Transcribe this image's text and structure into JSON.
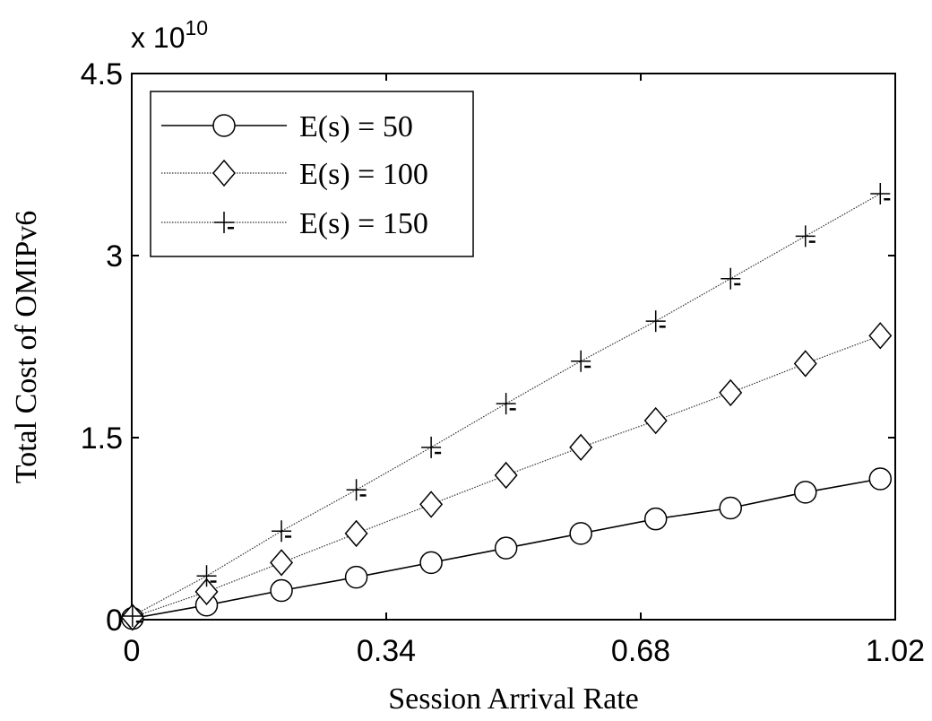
{
  "chart_data": {
    "type": "line",
    "xlabel": "Session Arrival Rate",
    "ylabel": "Total Cost of OMIPv6",
    "y_multiplier": {
      "base": "x 10",
      "exponent": "10"
    },
    "xlim": [
      0,
      1.02
    ],
    "ylim": [
      0,
      4.5
    ],
    "xticks": [
      0,
      0.34,
      0.68,
      1.02
    ],
    "xtick_labels": [
      "0",
      "0.34",
      "0.68",
      "1.02"
    ],
    "yticks": [
      0,
      1.5,
      3,
      4.5
    ],
    "ytick_labels": [
      "0",
      "1.5",
      "3",
      "4.5"
    ],
    "grid": false,
    "legend_position": "top-left",
    "x": [
      0.001,
      0.1,
      0.2,
      0.3,
      0.4,
      0.5,
      0.6,
      0.7,
      0.8,
      0.9,
      1.0
    ],
    "series": [
      {
        "name": "E(s) = 50",
        "marker": "circle",
        "line_style": "solid",
        "values": [
          0.01,
          0.12,
          0.24,
          0.35,
          0.47,
          0.59,
          0.71,
          0.83,
          0.92,
          1.05,
          1.16
        ]
      },
      {
        "name": "E(s) = 100",
        "marker": "diamond",
        "line_style": "dotted",
        "values": [
          0.02,
          0.23,
          0.47,
          0.71,
          0.95,
          1.19,
          1.42,
          1.64,
          1.87,
          2.11,
          2.34
        ]
      },
      {
        "name": "E(s) = 150",
        "marker": "plus",
        "line_style": "dotted",
        "values": [
          0.03,
          0.36,
          0.73,
          1.07,
          1.42,
          1.78,
          2.13,
          2.46,
          2.81,
          3.16,
          3.51
        ]
      }
    ]
  }
}
